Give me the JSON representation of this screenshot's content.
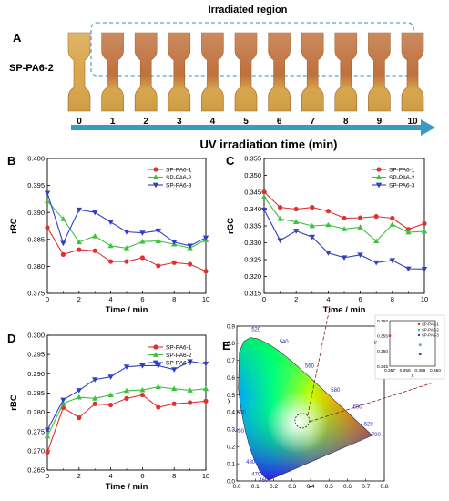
{
  "panel_a": {
    "label": "A",
    "title": "Irradiated region",
    "sample_label": "SP-PA6-2",
    "x_labels": [
      "0",
      "1",
      "2",
      "3",
      "4",
      "5",
      "6",
      "7",
      "8",
      "9",
      "10"
    ],
    "axis_label": "UV irradiation time (min)",
    "colors": {
      "untreated": "#d9a64a",
      "irradiated": "#c0723e",
      "arrow": "#3a9ac4",
      "box": "#5aa7c9"
    }
  },
  "panel_e": {
    "label": "E",
    "inset_points": [
      {
        "name": "SP-PA6-1",
        "x": 0.357,
        "y": 0.355,
        "color": "#e03030"
      },
      {
        "name": "SP-PA6-2",
        "x": 0.359,
        "y": 0.352,
        "color": "#40c040"
      },
      {
        "name": "SP-PA6-3",
        "x": 0.359,
        "y": 0.349,
        "color": "#3040c0"
      }
    ],
    "inset_xticks": [
      "0.357",
      "0.358",
      "0.359",
      "0.360"
    ],
    "inset_yticks": [
      "0.360",
      "0.355",
      "0.350",
      "0.345"
    ],
    "inset_xlabel": "x",
    "inset_ylabel": "y",
    "wavelength_labels": [
      "520",
      "540",
      "560",
      "580",
      "600",
      "620",
      "700",
      "500",
      "490",
      "480",
      "470",
      "460"
    ],
    "xticks": [
      "0.0",
      "0.1",
      "0.2",
      "0.3",
      "0.4",
      "0.5",
      "0.6",
      "0.7",
      "0.8"
    ],
    "yticks": [
      "0.9",
      "0.8",
      "0.7",
      "0.6",
      "0.5",
      "0.4",
      "0.3",
      "0.2",
      "0.1",
      "0.0"
    ],
    "xlabel": "x",
    "ylabel": "y"
  },
  "chart_data": [
    {
      "type": "line",
      "panel": "B",
      "ylabel": "rRC",
      "xlabel": "Time / min",
      "x": [
        0,
        1,
        2,
        3,
        4,
        5,
        6,
        7,
        8,
        9,
        10
      ],
      "xlim": [
        0,
        10
      ],
      "ylim": [
        0.375,
        0.4
      ],
      "xticks": [
        "0",
        "2",
        "4",
        "6",
        "8",
        "10"
      ],
      "yticks": [
        "0.375",
        "0.380",
        "0.385",
        "0.390",
        "0.395",
        "0.400"
      ],
      "series": [
        {
          "name": "SP-PA6-1",
          "color": "#e03030",
          "marker": "circle",
          "values": [
            0.3872,
            0.3822,
            0.3831,
            0.3829,
            0.3809,
            0.3809,
            0.3816,
            0.3801,
            0.3807,
            0.3804,
            0.3791
          ]
        },
        {
          "name": "SP-PA6-2",
          "color": "#40c040",
          "marker": "triangle-up",
          "values": [
            0.3921,
            0.3888,
            0.3845,
            0.3856,
            0.3838,
            0.3834,
            0.3846,
            0.3847,
            0.3841,
            0.3834,
            0.3849
          ]
        },
        {
          "name": "SP-PA6-3",
          "color": "#3040c0",
          "marker": "triangle-down",
          "values": [
            0.3936,
            0.3843,
            0.3905,
            0.39,
            0.3882,
            0.3864,
            0.3862,
            0.3866,
            0.3845,
            0.3838,
            0.3853
          ]
        }
      ]
    },
    {
      "type": "line",
      "panel": "C",
      "ylabel": "rGC",
      "xlabel": "Time / min",
      "x": [
        0,
        1,
        2,
        3,
        4,
        5,
        6,
        7,
        8,
        9,
        10
      ],
      "xlim": [
        0,
        10
      ],
      "ylim": [
        0.315,
        0.355
      ],
      "xticks": [
        "0",
        "2",
        "4",
        "6",
        "8",
        "10"
      ],
      "yticks": [
        "0.315",
        "0.320",
        "0.325",
        "0.330",
        "0.335",
        "0.340",
        "0.345",
        "0.350",
        "0.355"
      ],
      "series": [
        {
          "name": "SP-PA6-1",
          "color": "#e03030",
          "marker": "circle",
          "values": [
            0.3451,
            0.3405,
            0.34,
            0.3405,
            0.3394,
            0.3373,
            0.3374,
            0.3378,
            0.3373,
            0.334,
            0.3357
          ]
        },
        {
          "name": "SP-PA6-2",
          "color": "#40c040",
          "marker": "triangle-up",
          "values": [
            0.3436,
            0.3371,
            0.3362,
            0.335,
            0.3353,
            0.3341,
            0.3346,
            0.3305,
            0.3354,
            0.3331,
            0.3334
          ]
        },
        {
          "name": "SP-PA6-3",
          "color": "#3040c0",
          "marker": "triangle-down",
          "values": [
            0.3398,
            0.3307,
            0.3335,
            0.3317,
            0.327,
            0.3256,
            0.3264,
            0.3241,
            0.3248,
            0.3223,
            0.3222
          ]
        }
      ]
    },
    {
      "type": "line",
      "panel": "D",
      "ylabel": "rBC",
      "xlabel": "Time / min",
      "x": [
        0,
        1,
        2,
        3,
        4,
        5,
        6,
        7,
        8,
        9,
        10
      ],
      "xlim": [
        0,
        10
      ],
      "ylim": [
        0.265,
        0.3
      ],
      "xticks": [
        "0",
        "2",
        "4",
        "6",
        "8",
        "10"
      ],
      "yticks": [
        "0.265",
        "0.270",
        "0.275",
        "0.280",
        "0.285",
        "0.290",
        "0.295",
        "0.300"
      ],
      "series": [
        {
          "name": "SP-PA6-1",
          "color": "#e03030",
          "marker": "circle",
          "values": [
            0.2696,
            0.2812,
            0.2786,
            0.2822,
            0.2819,
            0.2836,
            0.2845,
            0.2813,
            0.2822,
            0.2825,
            0.2829
          ]
        },
        {
          "name": "SP-PA6-2",
          "color": "#40c040",
          "marker": "triangle-up",
          "values": [
            0.2738,
            0.2823,
            0.2839,
            0.2836,
            0.2845,
            0.2856,
            0.2858,
            0.2866,
            0.2861,
            0.2857,
            0.2861
          ]
        },
        {
          "name": "SP-PA6-3",
          "color": "#3040c0",
          "marker": "triangle-down",
          "values": [
            0.2754,
            0.2832,
            0.2857,
            0.2885,
            0.2892,
            0.2918,
            0.2921,
            0.2921,
            0.2911,
            0.2932,
            0.2926
          ]
        }
      ]
    }
  ]
}
